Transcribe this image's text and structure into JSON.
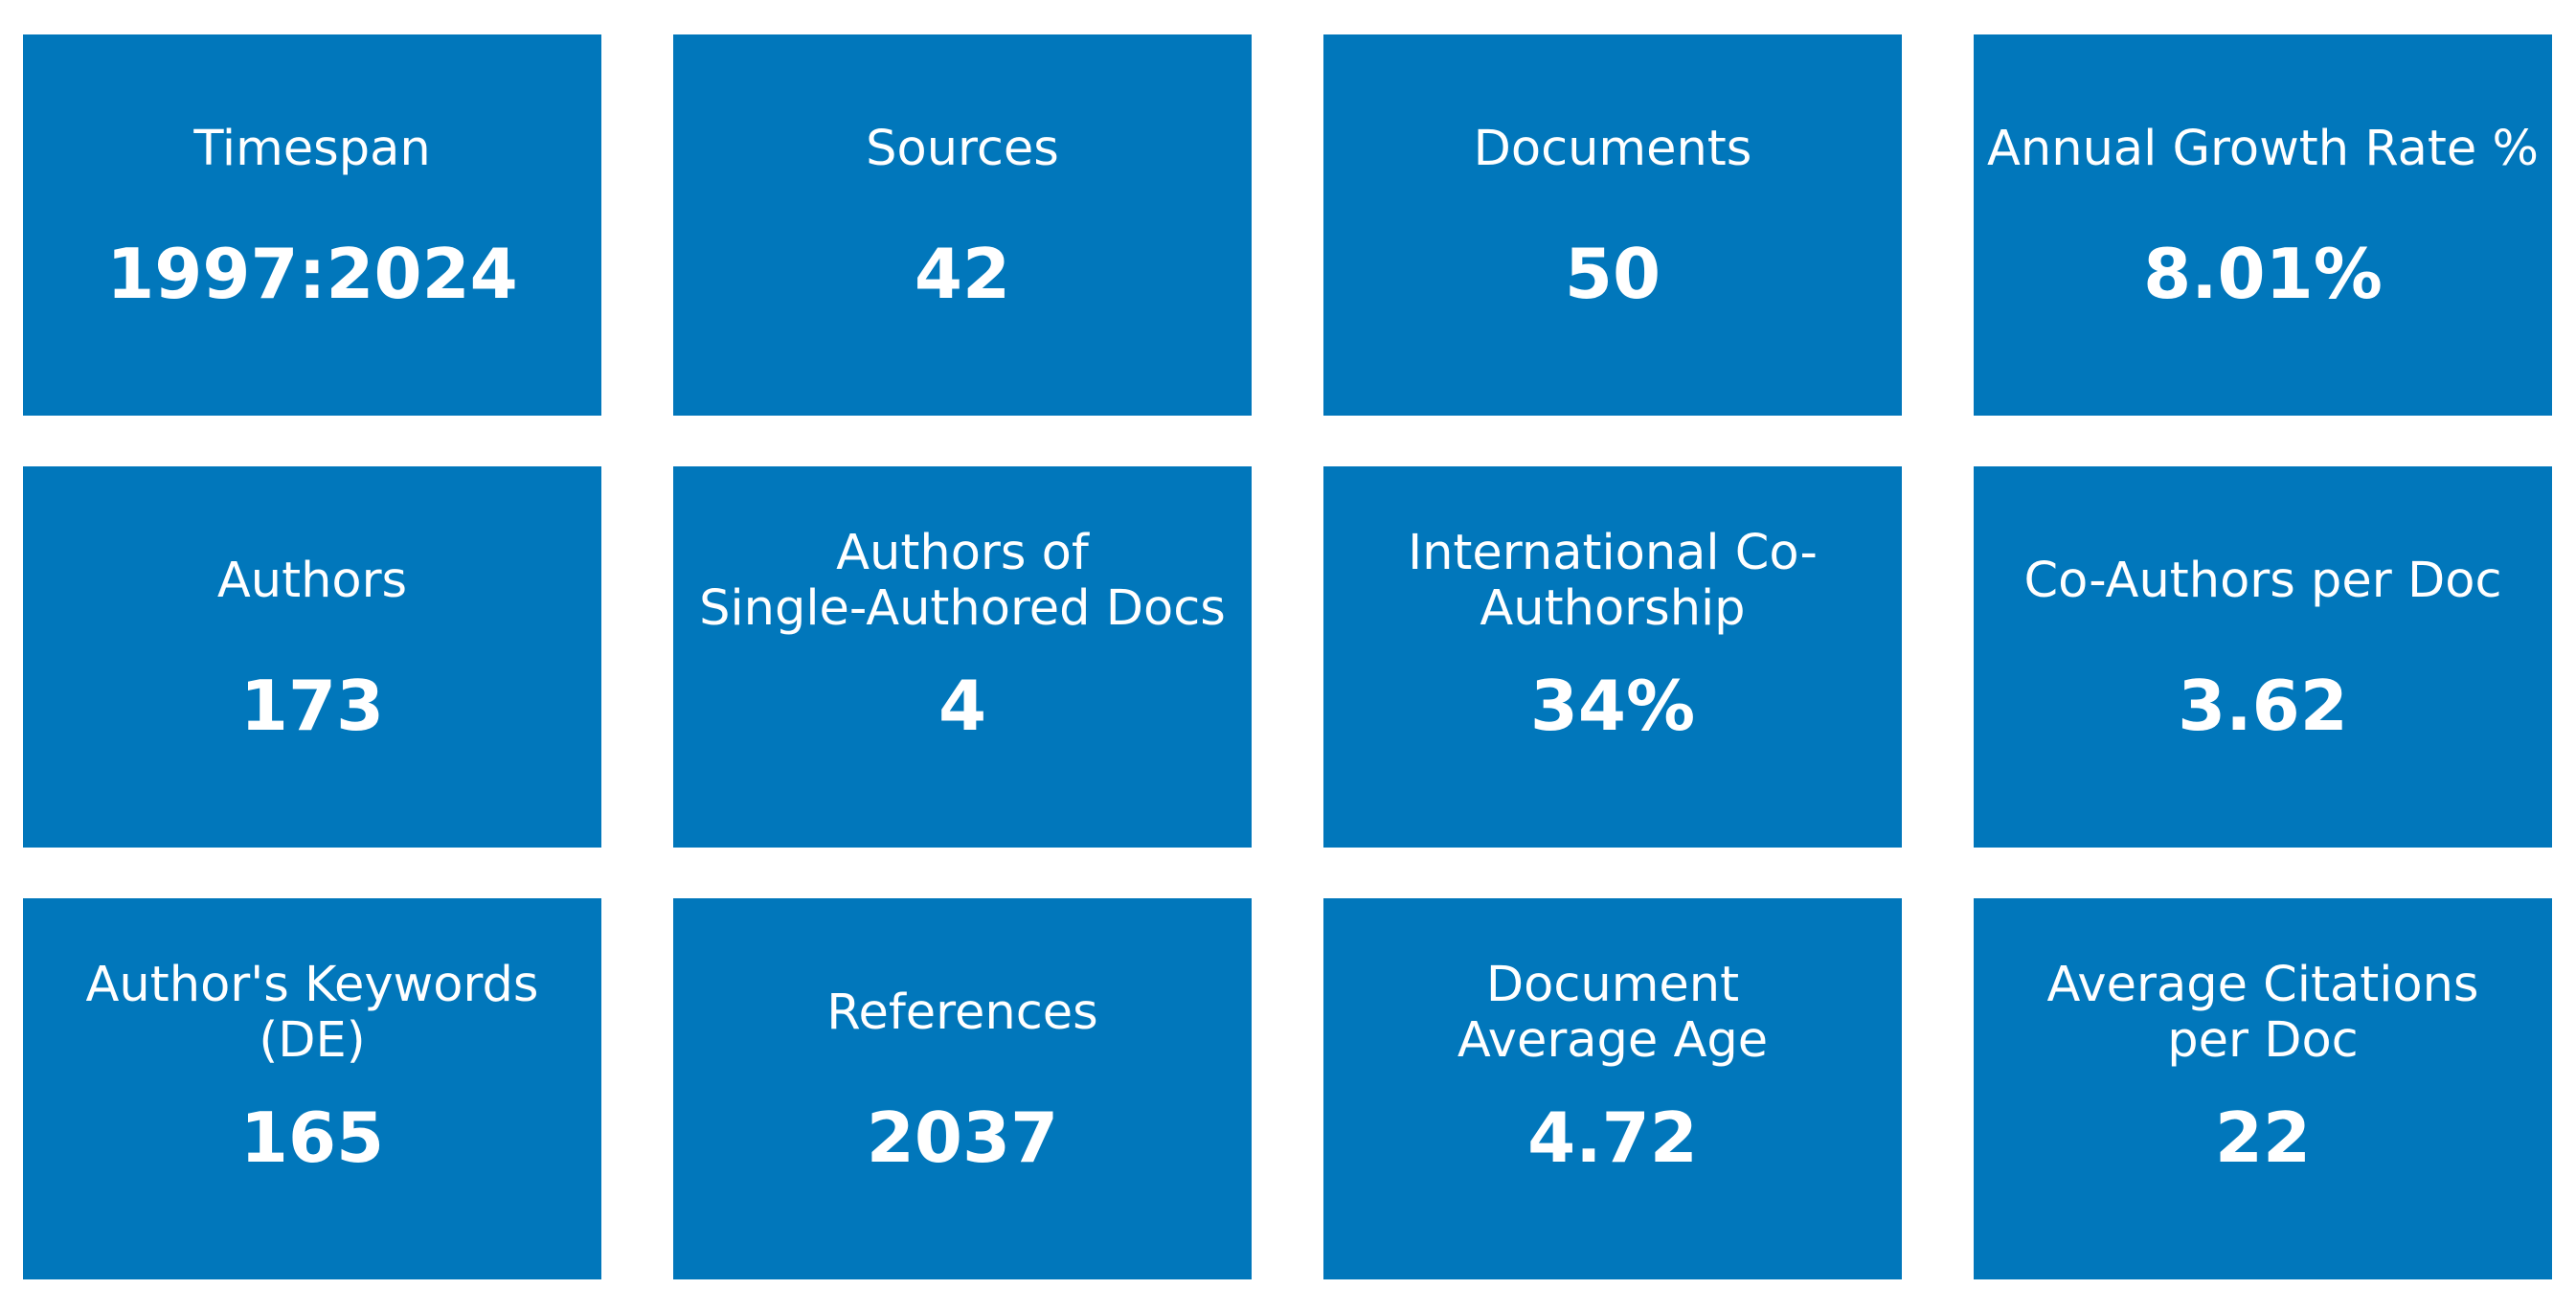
{
  "colors": {
    "card_background": "#0177BB",
    "card_text": "#FFFFFF",
    "page_background": "#FFFFFF"
  },
  "cards": [
    {
      "label": "Timespan",
      "value": "1997:2024"
    },
    {
      "label": "Sources",
      "value": "42"
    },
    {
      "label": "Documents",
      "value": "50"
    },
    {
      "label": "Annual Growth Rate %",
      "value": "8.01%"
    },
    {
      "label": "Authors",
      "value": "173"
    },
    {
      "label": "Authors of\nSingle-Authored Docs",
      "value": "4"
    },
    {
      "label": "International Co-\nAuthorship",
      "value": "34%"
    },
    {
      "label": "Co-Authors per Doc",
      "value": "3.62"
    },
    {
      "label": "Author's Keywords\n(DE)",
      "value": "165"
    },
    {
      "label": "References",
      "value": "2037"
    },
    {
      "label": "Document\nAverage Age",
      "value": "4.72"
    },
    {
      "label": "Average Citations\nper Doc",
      "value": "22"
    }
  ]
}
